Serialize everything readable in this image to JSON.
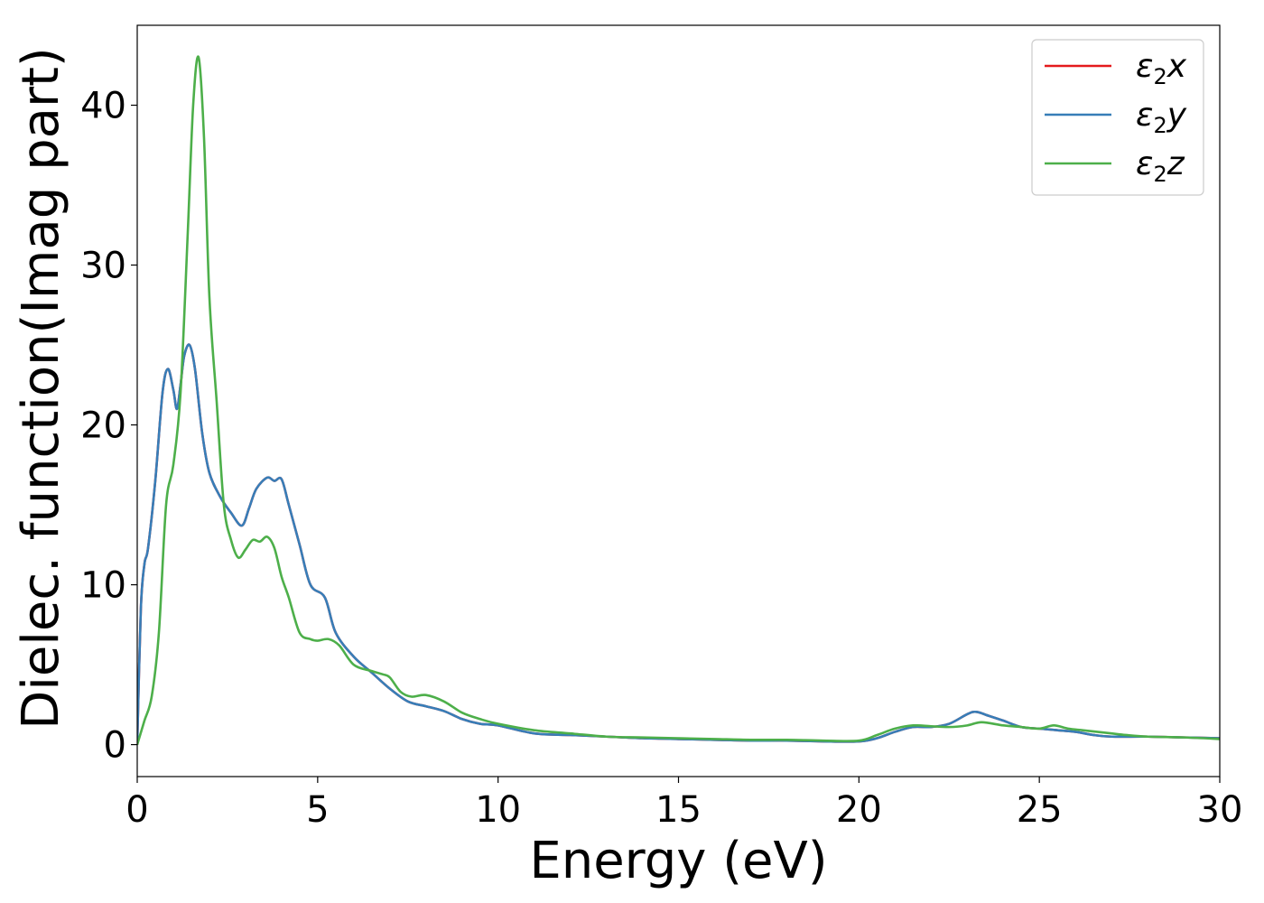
{
  "chart_data": {
    "type": "line",
    "title": "",
    "xlabel": "Energy (eV)",
    "ylabel": "Dielec. function(Imag part)",
    "xlim": [
      0,
      30
    ],
    "ylim": [
      -2,
      45
    ],
    "x_ticks": [
      0,
      5,
      10,
      15,
      20,
      25,
      30
    ],
    "y_ticks": [
      0,
      10,
      20,
      30,
      40
    ],
    "grid": false,
    "legend_position": "top-right",
    "colors": {
      "e2x": "#e41a1c",
      "e2y": "#377eb8",
      "e2z": "#4daf4a",
      "axes": "#000000",
      "legend_border": "#cccccc"
    },
    "series": [
      {
        "key": "e2x",
        "name": "ε2x",
        "x": [
          0,
          0.1,
          0.2,
          0.3,
          0.5,
          0.7,
          0.85,
          1.0,
          1.1,
          1.2,
          1.3,
          1.45,
          1.6,
          1.8,
          2.0,
          2.3,
          2.6,
          2.9,
          3.1,
          3.3,
          3.6,
          3.8,
          4.0,
          4.2,
          4.5,
          4.8,
          5.2,
          5.5,
          6.0,
          6.5,
          7.0,
          7.5,
          8.0,
          8.5,
          9.0,
          9.5,
          10.0,
          11.0,
          12.0,
          13.0,
          14.0,
          15.0,
          16.0,
          17.0,
          18.0,
          19.0,
          20.0,
          20.5,
          21.0,
          21.5,
          22.0,
          22.5,
          23.0,
          23.25,
          23.6,
          24.0,
          24.5,
          25.0,
          25.5,
          26.0,
          26.5,
          27.0,
          28.0,
          29.0,
          30.0
        ],
        "values": [
          0,
          8.5,
          11.3,
          12.3,
          16.5,
          22.0,
          23.5,
          22.2,
          21.0,
          22.5,
          24.3,
          25.0,
          23.5,
          19.5,
          17.0,
          15.5,
          14.5,
          13.7,
          14.8,
          16.0,
          16.7,
          16.5,
          16.6,
          15.0,
          12.5,
          10.0,
          9.2,
          7.0,
          5.5,
          4.5,
          3.5,
          2.7,
          2.4,
          2.1,
          1.6,
          1.3,
          1.2,
          0.7,
          0.6,
          0.5,
          0.4,
          0.35,
          0.3,
          0.25,
          0.25,
          0.2,
          0.2,
          0.4,
          0.8,
          1.1,
          1.1,
          1.3,
          1.9,
          2.05,
          1.8,
          1.5,
          1.1,
          1.0,
          0.9,
          0.8,
          0.6,
          0.5,
          0.5,
          0.45,
          0.4
        ]
      },
      {
        "key": "e2y",
        "name": "ε2y",
        "x": [
          0,
          0.1,
          0.2,
          0.3,
          0.5,
          0.7,
          0.85,
          1.0,
          1.1,
          1.2,
          1.3,
          1.45,
          1.6,
          1.8,
          2.0,
          2.3,
          2.6,
          2.9,
          3.1,
          3.3,
          3.6,
          3.8,
          4.0,
          4.2,
          4.5,
          4.8,
          5.2,
          5.5,
          6.0,
          6.5,
          7.0,
          7.5,
          8.0,
          8.5,
          9.0,
          9.5,
          10.0,
          11.0,
          12.0,
          13.0,
          14.0,
          15.0,
          16.0,
          17.0,
          18.0,
          19.0,
          20.0,
          20.5,
          21.0,
          21.5,
          22.0,
          22.5,
          23.0,
          23.25,
          23.6,
          24.0,
          24.5,
          25.0,
          25.5,
          26.0,
          26.5,
          27.0,
          28.0,
          29.0,
          30.0
        ],
        "values": [
          0,
          8.5,
          11.3,
          12.3,
          16.5,
          22.0,
          23.5,
          22.2,
          21.0,
          22.5,
          24.3,
          25.0,
          23.5,
          19.5,
          17.0,
          15.5,
          14.5,
          13.7,
          14.8,
          16.0,
          16.7,
          16.5,
          16.6,
          15.0,
          12.5,
          10.0,
          9.2,
          7.0,
          5.5,
          4.5,
          3.5,
          2.7,
          2.4,
          2.1,
          1.6,
          1.3,
          1.2,
          0.7,
          0.6,
          0.5,
          0.4,
          0.35,
          0.3,
          0.25,
          0.25,
          0.2,
          0.2,
          0.4,
          0.8,
          1.1,
          1.1,
          1.3,
          1.9,
          2.05,
          1.8,
          1.5,
          1.1,
          1.0,
          0.9,
          0.8,
          0.6,
          0.5,
          0.5,
          0.45,
          0.4
        ]
      },
      {
        "key": "e2z",
        "name": "ε2z",
        "x": [
          0,
          0.2,
          0.4,
          0.6,
          0.8,
          1.0,
          1.2,
          1.4,
          1.55,
          1.7,
          1.85,
          2.0,
          2.2,
          2.4,
          2.6,
          2.8,
          3.0,
          3.2,
          3.4,
          3.6,
          3.8,
          4.0,
          4.2,
          4.5,
          4.8,
          5.0,
          5.3,
          5.6,
          6.0,
          6.5,
          6.8,
          7.0,
          7.3,
          7.6,
          8.0,
          8.5,
          9.0,
          9.5,
          10.0,
          11.0,
          12.0,
          13.0,
          14.0,
          15.0,
          16.0,
          17.0,
          18.0,
          19.0,
          20.0,
          20.5,
          21.0,
          21.5,
          22.0,
          22.5,
          23.0,
          23.4,
          24.0,
          24.5,
          25.0,
          25.4,
          25.8,
          26.2,
          26.6,
          27.0,
          27.4,
          28.0,
          29.0,
          30.0
        ],
        "values": [
          0,
          1.5,
          3.0,
          7.0,
          15.0,
          17.5,
          22.0,
          32.0,
          40.0,
          43.0,
          38.0,
          28.0,
          21.5,
          15.0,
          12.8,
          11.7,
          12.2,
          12.8,
          12.7,
          13.0,
          12.3,
          10.5,
          9.2,
          7.0,
          6.6,
          6.5,
          6.6,
          6.2,
          5.0,
          4.6,
          4.4,
          4.2,
          3.3,
          3.0,
          3.1,
          2.7,
          2.0,
          1.6,
          1.3,
          0.9,
          0.7,
          0.5,
          0.45,
          0.4,
          0.35,
          0.3,
          0.3,
          0.25,
          0.25,
          0.6,
          1.0,
          1.2,
          1.15,
          1.1,
          1.2,
          1.4,
          1.2,
          1.1,
          1.0,
          1.2,
          1.0,
          0.9,
          0.8,
          0.7,
          0.6,
          0.5,
          0.45,
          0.35
        ]
      }
    ]
  }
}
